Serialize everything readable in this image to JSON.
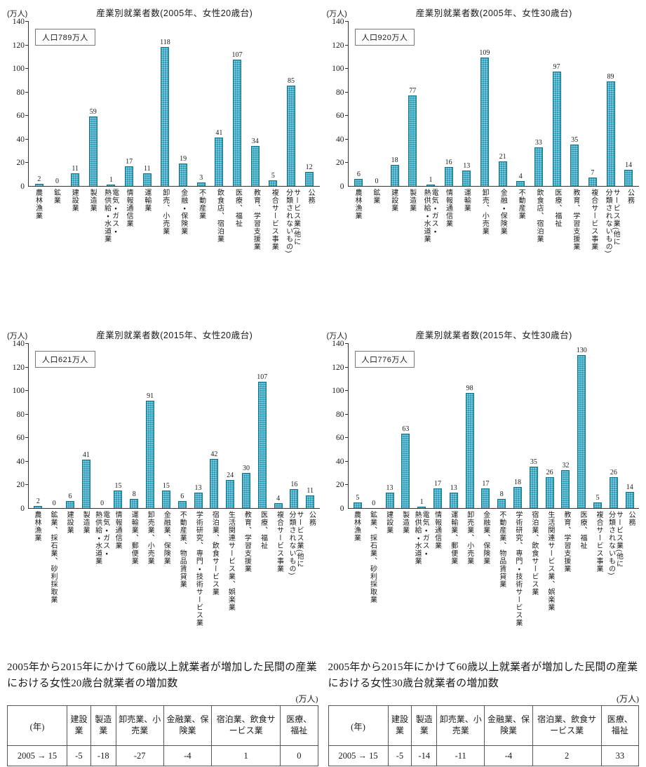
{
  "chart_data": [
    {
      "type": "bar",
      "title": "産業別就業者数(2005年、女性20歳台)",
      "y_unit": "(万人)",
      "annotation": "人口789万人",
      "ylim": [
        0,
        140
      ],
      "yticks": [
        0,
        20,
        40,
        60,
        80,
        100,
        120,
        140
      ],
      "categories": [
        "農林漁業",
        "鉱業",
        "建設業",
        "製造業",
        "電気・ガス・\n熱供給・水道業",
        "情報通信業",
        "運輸業",
        "卸売、小売業",
        "金融・保険業",
        "不動産業",
        "飲食店、宿泊業",
        "医療、福祉",
        "教育、学習支援業",
        "複合サービス事業",
        "サービス業(他に\n分類されないもの)",
        "公務"
      ],
      "values": [
        2,
        0,
        11,
        59,
        1,
        17,
        11,
        118,
        19,
        3,
        41,
        107,
        34,
        5,
        85,
        12
      ]
    },
    {
      "type": "bar",
      "title": "産業別就業者数(2005年、女性30歳台)",
      "y_unit": "(万人)",
      "annotation": "人口920万人",
      "ylim": [
        0,
        140
      ],
      "yticks": [
        0,
        20,
        40,
        60,
        80,
        100,
        120,
        140
      ],
      "categories": [
        "農林漁業",
        "鉱業",
        "建設業",
        "製造業",
        "電気・ガス・\n熱供給・水道業",
        "情報通信業",
        "運輸業",
        "卸売、小売業",
        "金融・保険業",
        "不動産業",
        "飲食店、宿泊業",
        "医療、福祉",
        "教育、学習支援業",
        "複合サービス事業",
        "サービス業(他に\n分類されないもの)",
        "公務"
      ],
      "values": [
        6,
        0,
        18,
        77,
        1,
        16,
        13,
        109,
        21,
        4,
        33,
        97,
        35,
        7,
        89,
        14
      ]
    },
    {
      "type": "bar",
      "title": "産業別就業者数(2015年、女性20歳台)",
      "y_unit": "(万人)",
      "annotation": "人口621万人",
      "ylim": [
        0,
        140
      ],
      "yticks": [
        0,
        20,
        40,
        60,
        80,
        100,
        120,
        140
      ],
      "categories": [
        "農林漁業",
        "鉱業、採石業、砂利採取業",
        "建設業",
        "製造業",
        "電気・ガス・\n熱供給・水道業",
        "情報通信業",
        "運輸業、郵便業",
        "卸売業、小売業",
        "金融業、保険業",
        "不動産業、物品賃貸業",
        "学術研究、専門・技術サービス業",
        "宿泊業、飲食サービス業",
        "生活関連サービス業、娯楽業",
        "教育、学習支援業",
        "医療、福祉",
        "複合サービス事業",
        "サービス業(他に\n分類されないもの)",
        "公務"
      ],
      "values": [
        2,
        0,
        6,
        41,
        0,
        15,
        8,
        91,
        15,
        6,
        13,
        42,
        24,
        30,
        107,
        4,
        16,
        11
      ]
    },
    {
      "type": "bar",
      "title": "産業別就業者数(2015年、女性30歳台)",
      "y_unit": "(万人)",
      "annotation": "人口776万人",
      "ylim": [
        0,
        140
      ],
      "yticks": [
        0,
        20,
        40,
        60,
        80,
        100,
        120,
        140
      ],
      "categories": [
        "農林漁業",
        "鉱業、採石業、砂利採取業",
        "建設業",
        "製造業",
        "電気・ガス・\n熱供給・水道業",
        "情報通信業",
        "運輸業、郵便業",
        "卸売業、小売業",
        "金融業、保険業",
        "不動産業、物品賃貸業",
        "学術研究、専門・技術サービス業",
        "宿泊業、飲食サービス業",
        "生活関連サービス業、娯楽業",
        "教育、学習支援業",
        "医療、福祉",
        "複合サービス事業",
        "サービス業(他に\n分類されないもの)",
        "公務"
      ],
      "values": [
        5,
        0,
        13,
        63,
        1,
        17,
        13,
        98,
        17,
        8,
        18,
        35,
        26,
        32,
        130,
        5,
        26,
        14
      ]
    }
  ],
  "summaries": [
    {
      "caption": "2005年から2015年にかけて60歳以上就業者が増加した民間の産業における女性20歳台就業者の増加数",
      "unit": "(万人)",
      "table": {
        "corner_label": "(年)",
        "columns": [
          "建設業",
          "製造業",
          "卸売業、小売業",
          "金融業、保険業",
          "宿泊業、飲食サービス業",
          "医療、福祉"
        ],
        "rows": [
          {
            "label": "2005 → 15",
            "values": [
              "-5",
              "-18",
              "-27",
              "-4",
              "1",
              "0"
            ]
          }
        ]
      }
    },
    {
      "caption": "2005年から2015年にかけて60歳以上就業者が増加した民間の産業における女性30歳台就業者の増加数",
      "unit": "(万人)",
      "table": {
        "corner_label": "(年)",
        "columns": [
          "建設業",
          "製造業",
          "卸売業、小売業",
          "金融業、保険業",
          "宿泊業、飲食サービス業",
          "医療、福祉"
        ],
        "rows": [
          {
            "label": "2005 → 15",
            "values": [
              "-5",
              "-14",
              "-11",
              "-4",
              "2",
              "33"
            ]
          }
        ]
      }
    }
  ],
  "colors": {
    "bar_fill": "#2d9fbc",
    "bar_border": "#17768f",
    "axis": "#333333"
  }
}
